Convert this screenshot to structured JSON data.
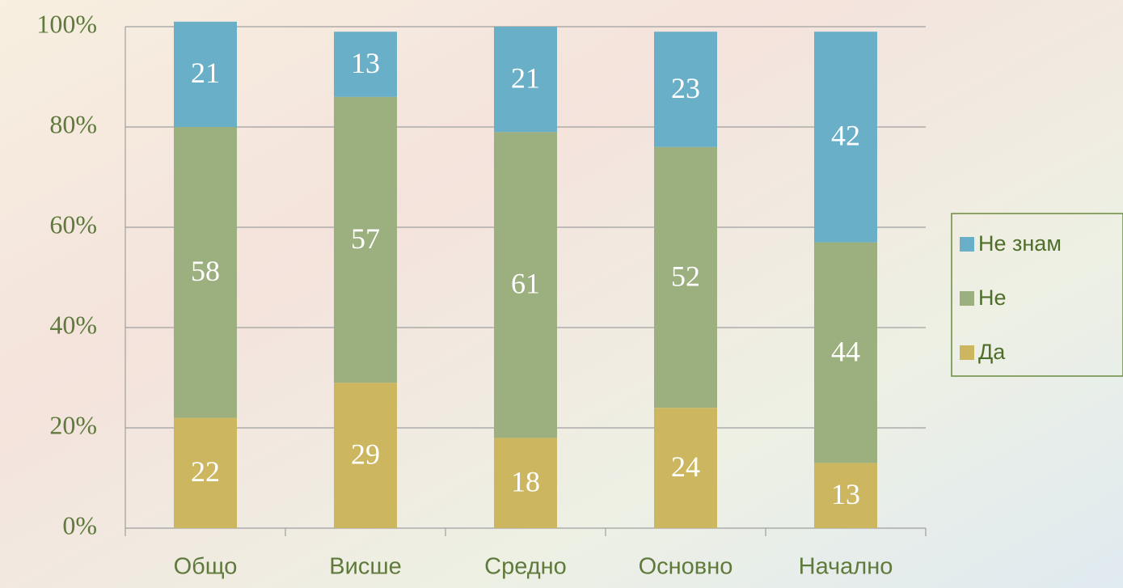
{
  "chart_data": {
    "type": "stacked-bar",
    "categories": [
      "Общо",
      "Висше",
      "Средно",
      "Основно",
      "Начално"
    ],
    "series": [
      {
        "name": "Да",
        "color": "#cdb660",
        "values": [
          22,
          29,
          18,
          24,
          13
        ]
      },
      {
        "name": "Не",
        "color": "#9caf7e",
        "values": [
          58,
          57,
          61,
          52,
          44
        ]
      },
      {
        "name": "Не знам",
        "color": "#6aafc8",
        "values": [
          21,
          13,
          21,
          23,
          42
        ]
      }
    ],
    "ylim": [
      0,
      100
    ],
    "yticks": [
      {
        "value": 0,
        "label": "0%"
      },
      {
        "value": 20,
        "label": "20%"
      },
      {
        "value": 40,
        "label": "40%"
      },
      {
        "value": 60,
        "label": "60%"
      },
      {
        "value": 80,
        "label": "80%"
      },
      {
        "value": 100,
        "label": "100%"
      }
    ],
    "grid": true,
    "legend": "right"
  }
}
